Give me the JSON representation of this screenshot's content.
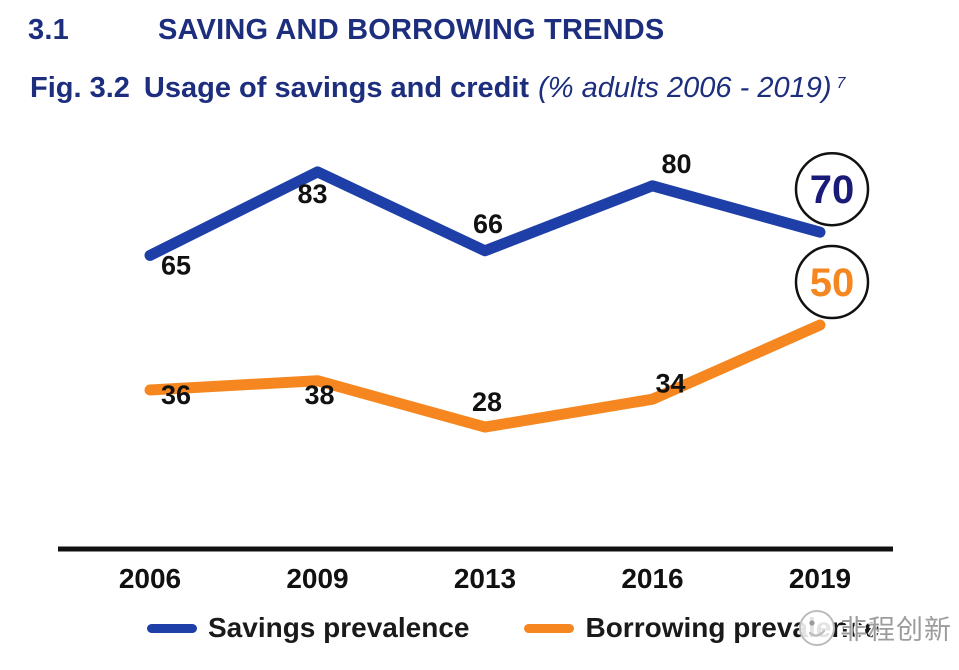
{
  "page": {
    "section_number": "3.1",
    "section_title": "SAVING AND BORROWING TRENDS",
    "figure_label": "Fig. 3.2",
    "figure_title": "Usage of savings and credit",
    "figure_subtitle": "(% adults 2006 - 2019)",
    "footnote_marker": "7"
  },
  "colors": {
    "heading": "#1c2e7d",
    "savings_line": "#1f3fa8",
    "borrowing_line": "#f6861f",
    "data_label": "#111111",
    "axis": "#111111",
    "circle_stroke": "#111111"
  },
  "chart_data": {
    "type": "line",
    "title": "Usage of savings and credit (% adults 2006 - 2019)",
    "xlabel": "",
    "ylabel": "",
    "categories": [
      "2006",
      "2009",
      "2013",
      "2016",
      "2019"
    ],
    "series": [
      {
        "name": "Savings prevalence",
        "color": "#1f3fa8",
        "values": [
          65,
          83,
          66,
          80,
          70
        ],
        "label_offsets": [
          [
            26,
            12
          ],
          [
            -5,
            24
          ],
          [
            3,
            -25
          ],
          [
            24,
            -20
          ],
          null
        ],
        "end_circle": {
          "value": 70,
          "text_color": "#1a1a78"
        }
      },
      {
        "name": "Borrowing prevalence",
        "color": "#f6861f",
        "values": [
          36,
          38,
          28,
          34,
          50
        ],
        "label_offsets": [
          [
            26,
            7
          ],
          [
            2,
            16
          ],
          [
            2,
            -23
          ],
          [
            18,
            -14
          ],
          null
        ],
        "end_circle": {
          "value": 50,
          "text_color": "#f6861f"
        }
      }
    ],
    "ylim": [
      20,
      90
    ],
    "grid": false,
    "y_axis_shown": false,
    "legend_position": "bottom"
  },
  "legend": {
    "items": [
      {
        "label": "Savings prevalence",
        "color": "#1f3fa8"
      },
      {
        "label": "Borrowing prevalence",
        "color": "#f6861f"
      }
    ]
  },
  "watermark": {
    "text": "非程创新"
  }
}
